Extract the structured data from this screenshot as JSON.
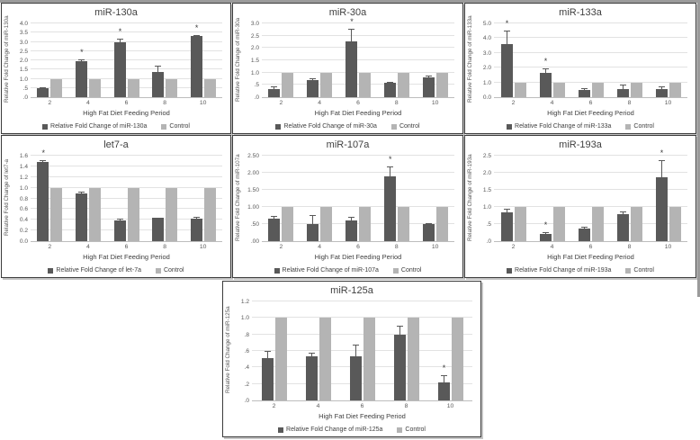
{
  "figure": {
    "description": "Seven bar charts of relative fold change of miRNAs vs control over high fat diet feeding period",
    "colors": {
      "treatment_bar": "#595959",
      "control_bar": "#b4b4b4",
      "gridline": "#e2e2e2",
      "axis_line": "#bdbdbd",
      "text": "#595959",
      "title_text": "#3f3f3f",
      "panel_border": "#3c3c3c"
    },
    "significance_marker": "*"
  },
  "chart_data": [
    {
      "type": "bar",
      "title": "miR-130a",
      "ylabel": "Relative Fold Change of miR-130a",
      "xlabel": "High Fat Diet Feeding Period",
      "categories": [
        "2",
        "4",
        "6",
        "8",
        "10"
      ],
      "ylim": [
        0,
        4.0
      ],
      "yticks": [
        ".0",
        ".5",
        "1.0",
        "1.5",
        "2.0",
        "2.5",
        "3.0",
        "3.5",
        "4.0"
      ],
      "grid": true,
      "legend_position": "bottom",
      "series": [
        {
          "name": "Relative Fold Change of miR-130a",
          "values": [
            0.5,
            1.95,
            3.0,
            1.35,
            3.3
          ],
          "errors": [
            0.06,
            0.12,
            0.18,
            0.35,
            0.08
          ],
          "significant": [
            false,
            true,
            true,
            false,
            true
          ]
        },
        {
          "name": "Control",
          "values": [
            1,
            1,
            1,
            1,
            1
          ]
        }
      ]
    },
    {
      "type": "bar",
      "title": "miR-30a",
      "ylabel": "Relative Fold Change of  miR-30a",
      "xlabel": "High Fat Diet Feeding Period",
      "categories": [
        "2",
        "4",
        "6",
        "8",
        "10"
      ],
      "ylim": [
        0,
        3.0
      ],
      "yticks": [
        ".0",
        ".5",
        "1.0",
        "1.5",
        "2.0",
        "2.5",
        "3.0"
      ],
      "grid": true,
      "legend_position": "bottom",
      "series": [
        {
          "name": "Relative Fold Change of miR-30a",
          "values": [
            0.33,
            0.68,
            2.28,
            0.57,
            0.82
          ],
          "errors": [
            0.1,
            0.08,
            0.5,
            0.04,
            0.05
          ],
          "significant": [
            false,
            false,
            true,
            false,
            false
          ]
        },
        {
          "name": "Control",
          "values": [
            1,
            1,
            1,
            1,
            1
          ]
        }
      ]
    },
    {
      "type": "bar",
      "title": "miR-133a",
      "ylabel": "Relative Fold Change of miR-133a",
      "xlabel": "High Fat Diet Feeding Period",
      "categories": [
        "2",
        "4",
        "6",
        "8",
        "10"
      ],
      "ylim": [
        0,
        5.0
      ],
      "yticks": [
        "0.0",
        "1.0",
        "2.0",
        "3.0",
        "4.0",
        "5.0"
      ],
      "grid": true,
      "legend_position": "bottom",
      "series": [
        {
          "name": "Relative Fold Change of miR-133a",
          "values": [
            3.6,
            1.65,
            0.5,
            0.55,
            0.52
          ],
          "errors": [
            0.9,
            0.3,
            0.1,
            0.32,
            0.22
          ],
          "significant": [
            true,
            true,
            false,
            false,
            false
          ]
        },
        {
          "name": "Control",
          "values": [
            1,
            1,
            1,
            1,
            1
          ]
        }
      ]
    },
    {
      "type": "bar",
      "title": "let7-a",
      "ylabel": "Relative Fold Change of  let7-a",
      "xlabel": "High Fat Diet Feeding Period",
      "categories": [
        "2",
        "4",
        "6",
        "8",
        "10"
      ],
      "ylim": [
        0,
        1.6
      ],
      "yticks": [
        "0.0",
        "0.2",
        "0.4",
        "0.6",
        "0.8",
        "1.0",
        "1.2",
        "1.4",
        "1.6"
      ],
      "grid": true,
      "legend_position": "bottom",
      "series": [
        {
          "name": "Relative Fold Change of let-7a",
          "values": [
            1.48,
            0.9,
            0.38,
            0.43,
            0.42
          ],
          "errors": [
            0.03,
            0.02,
            0.04,
            0.01,
            0.03
          ],
          "significant": [
            true,
            false,
            false,
            false,
            false
          ]
        },
        {
          "name": "Control",
          "values": [
            1,
            1,
            1,
            1,
            1
          ]
        }
      ]
    },
    {
      "type": "bar",
      "title": "miR-107a",
      "ylabel": "Relative Fold Change of  miR-107a",
      "xlabel": "High Fat Diet Feeding Period",
      "categories": [
        "2",
        "4",
        "6",
        "8",
        "10"
      ],
      "ylim": [
        0,
        2.5
      ],
      "yticks": [
        ".00",
        ".50",
        "1.00",
        "1.50",
        "2.00",
        "2.50"
      ],
      "grid": true,
      "legend_position": "bottom",
      "series": [
        {
          "name": "Relative Fold Change of miR-107a",
          "values": [
            0.65,
            0.5,
            0.6,
            1.9,
            0.49
          ],
          "errors": [
            0.08,
            0.27,
            0.12,
            0.28,
            0.03
          ],
          "significant": [
            false,
            false,
            false,
            true,
            false
          ]
        },
        {
          "name": "Control",
          "values": [
            1,
            1,
            1,
            1,
            1
          ]
        }
      ]
    },
    {
      "type": "bar",
      "title": "miR-193a",
      "ylabel": "Relative Fold Change of  miR-193a",
      "xlabel": "High Fat Diet Feeding Period",
      "categories": [
        "2",
        "4",
        "6",
        "8",
        "10"
      ],
      "ylim": [
        0,
        2.5
      ],
      "yticks": [
        ".0",
        ".5",
        "1.0",
        "1.5",
        "2.0",
        "2.5"
      ],
      "grid": true,
      "legend_position": "bottom",
      "series": [
        {
          "name": "Relative Fold Change of miR-193a",
          "values": [
            0.84,
            0.22,
            0.36,
            0.8,
            1.86
          ],
          "errors": [
            0.1,
            0.04,
            0.06,
            0.07,
            0.5
          ],
          "significant": [
            false,
            true,
            false,
            false,
            true
          ]
        },
        {
          "name": "Control",
          "values": [
            1,
            1,
            1,
            1,
            1
          ]
        }
      ]
    },
    {
      "type": "bar",
      "title": "miR-125a",
      "ylabel": "Relative Fold Change of  miR-125a",
      "xlabel": "High Fat Diet Feeding Period",
      "categories": [
        "2",
        "4",
        "6",
        "8",
        "10"
      ],
      "ylim": [
        0,
        1.2
      ],
      "yticks": [
        ".0",
        ".2",
        ".4",
        ".6",
        ".8",
        "1.0",
        "1.2"
      ],
      "grid": true,
      "legend_position": "bottom",
      "series": [
        {
          "name": "Relative Fold Change of miR-125a",
          "values": [
            0.51,
            0.53,
            0.53,
            0.8,
            0.22
          ],
          "errors": [
            0.09,
            0.05,
            0.15,
            0.11,
            0.09
          ],
          "significant": [
            false,
            false,
            false,
            false,
            true
          ]
        },
        {
          "name": "Control",
          "values": [
            1,
            1,
            1,
            1,
            1
          ]
        }
      ]
    }
  ]
}
